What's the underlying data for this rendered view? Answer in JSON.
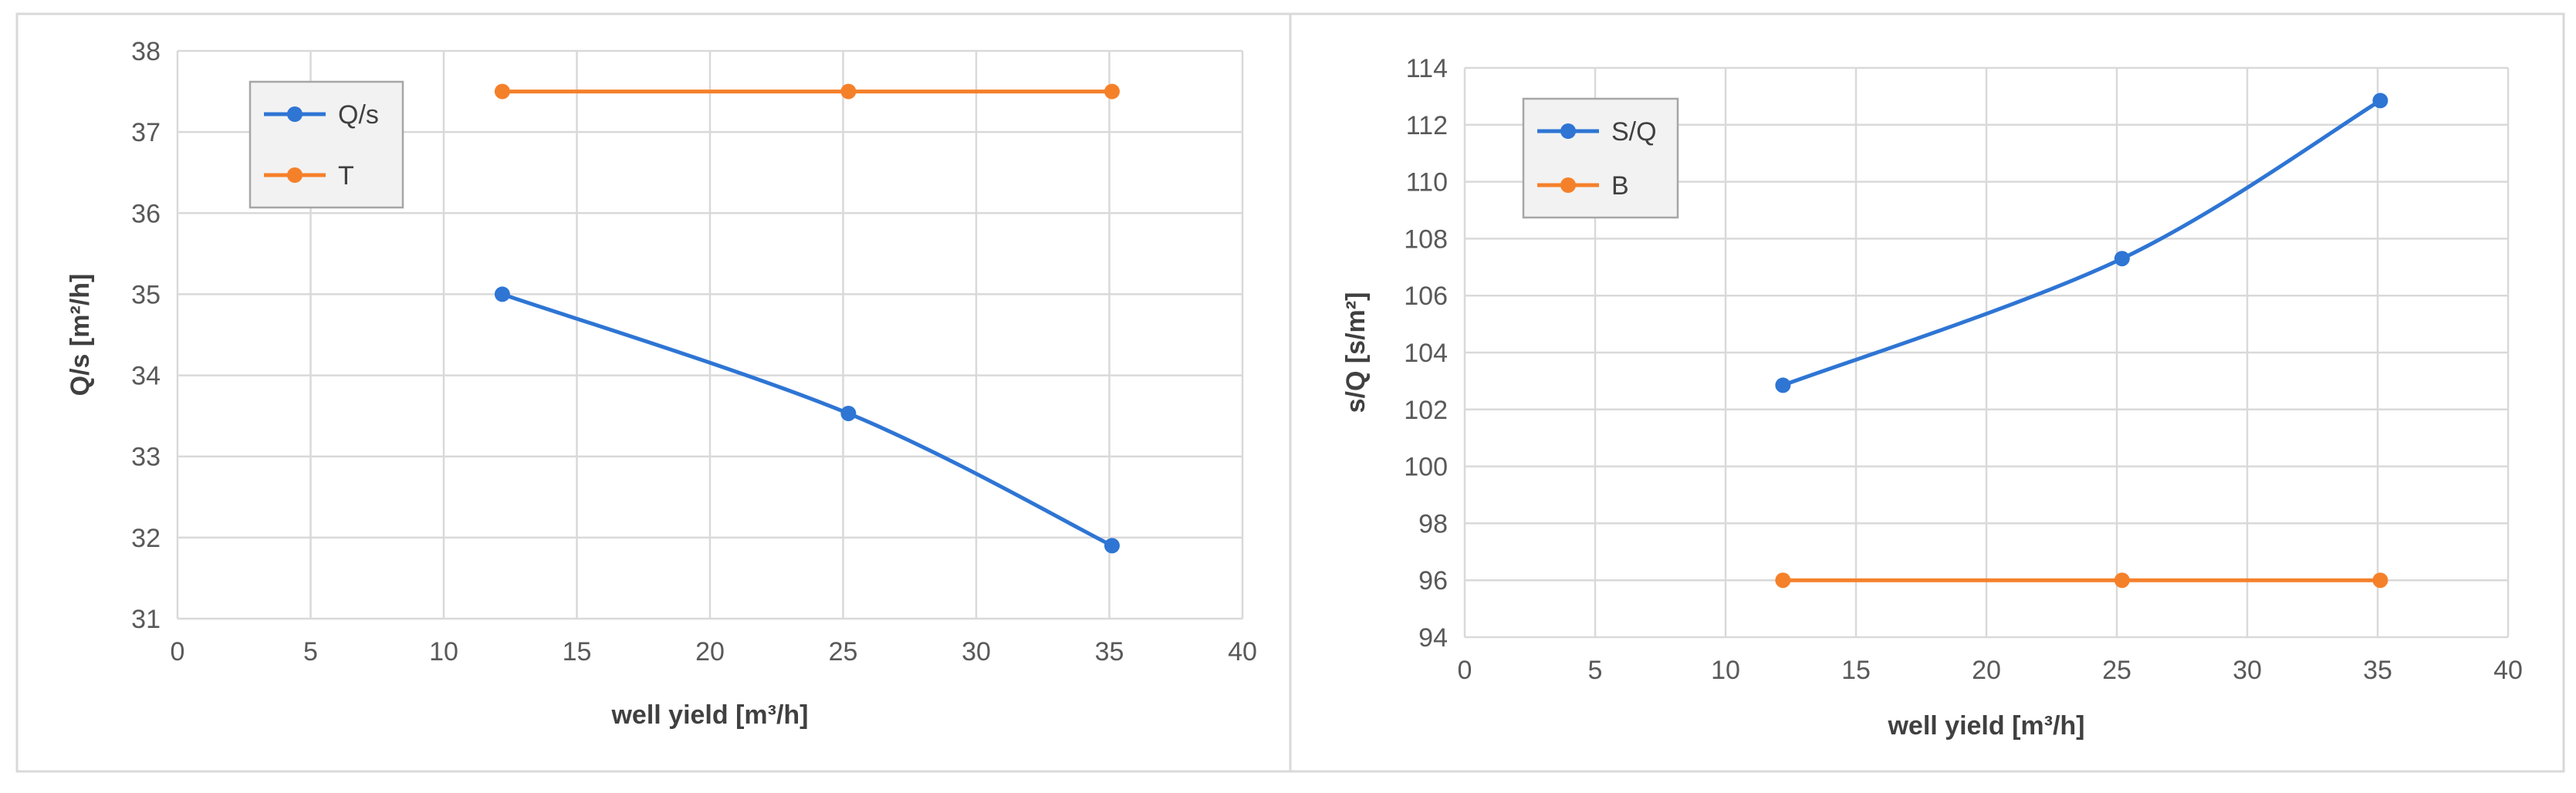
{
  "colors": {
    "blue": "#2E75D4",
    "orange": "#F5802A"
  },
  "chart_data": [
    {
      "type": "line",
      "xlabel": "well yield [m³/h]",
      "ylabel": "Q/s [m²/h]",
      "xlim": [
        0,
        40
      ],
      "ylim": [
        31,
        38
      ],
      "xticks": [
        "0",
        "5",
        "10",
        "15",
        "20",
        "25",
        "30",
        "35",
        "40"
      ],
      "yticks": [
        "31",
        "32",
        "33",
        "34",
        "35",
        "36",
        "37",
        "38"
      ],
      "grid": true,
      "legend_position": "top-left",
      "series": [
        {
          "name": "Q/s",
          "color": "#2E75D4",
          "x": [
            12.2,
            25.2,
            35.1
          ],
          "y": [
            35.0,
            33.53,
            31.9
          ]
        },
        {
          "name": "T",
          "color": "#F5802A",
          "x": [
            12.2,
            25.2,
            35.1
          ],
          "y": [
            37.5,
            37.5,
            37.5
          ]
        }
      ]
    },
    {
      "type": "line",
      "xlabel": "well yield [m³/h]",
      "ylabel": "s/Q [s/m²]",
      "xlim": [
        0,
        40
      ],
      "ylim": [
        94,
        114
      ],
      "xticks": [
        "0",
        "5",
        "10",
        "15",
        "20",
        "25",
        "30",
        "35",
        "40"
      ],
      "yticks": [
        "94",
        "96",
        "98",
        "100",
        "102",
        "104",
        "106",
        "108",
        "110",
        "112",
        "114"
      ],
      "grid": true,
      "legend_position": "top-left",
      "series": [
        {
          "name": "S/Q",
          "color": "#2E75D4",
          "x": [
            12.2,
            25.2,
            35.1
          ],
          "y": [
            102.85,
            107.3,
            112.85
          ]
        },
        {
          "name": "B",
          "color": "#F5802A",
          "x": [
            12.2,
            25.2,
            35.1
          ],
          "y": [
            96.0,
            96.0,
            96.0
          ]
        }
      ]
    }
  ]
}
